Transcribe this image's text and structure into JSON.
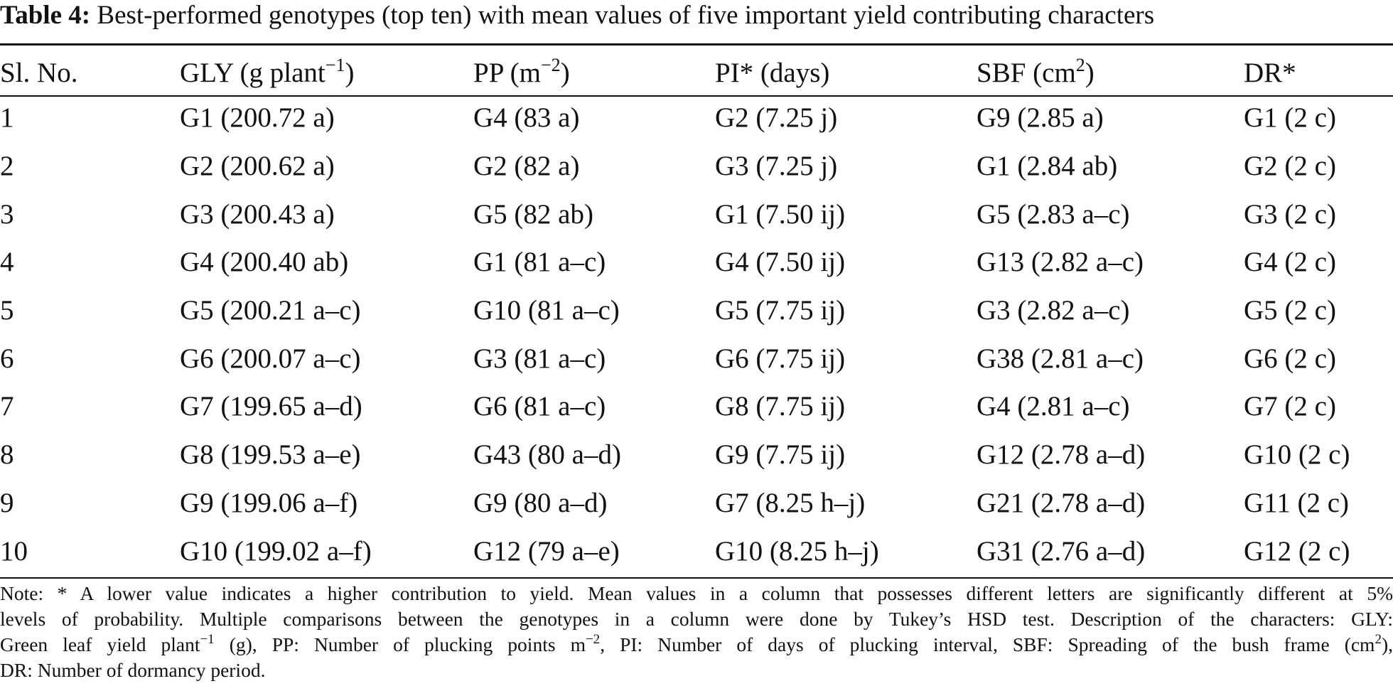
{
  "caption": {
    "label": "Table 4:",
    "text": "Best-performed genotypes (top ten) with mean values of five important yield contributing characters"
  },
  "table": {
    "headers": [
      {
        "text": "Sl. No.",
        "sup": "",
        "tail": ""
      },
      {
        "text": "GLY (g plant",
        "sup": "−1",
        "tail": ")"
      },
      {
        "text": "PP (m",
        "sup": "−2",
        "tail": ")"
      },
      {
        "text": "PI* (days)",
        "sup": "",
        "tail": ""
      },
      {
        "text": "SBF (cm",
        "sup": "2",
        "tail": ")"
      },
      {
        "text": "DR*",
        "sup": "",
        "tail": ""
      }
    ],
    "rows": [
      [
        "1",
        "G1 (200.72 a)",
        "G4 (83 a)",
        "G2 (7.25 j)",
        "G9 (2.85 a)",
        "G1 (2 c)"
      ],
      [
        "2",
        "G2 (200.62 a)",
        "G2 (82 a)",
        "G3 (7.25 j)",
        "G1 (2.84 ab)",
        "G2 (2 c)"
      ],
      [
        "3",
        "G3 (200.43 a)",
        "G5 (82 ab)",
        "G1 (7.50 ij)",
        "G5 (2.83 a–c)",
        "G3 (2 c)"
      ],
      [
        "4",
        "G4 (200.40 ab)",
        "G1 (81 a–c)",
        "G4 (7.50 ij)",
        "G13 (2.82 a–c)",
        "G4 (2 c)"
      ],
      [
        "5",
        "G5 (200.21 a–c)",
        "G10 (81 a–c)",
        "G5 (7.75 ij)",
        "G3 (2.82 a–c)",
        "G5 (2 c)"
      ],
      [
        "6",
        "G6 (200.07 a–c)",
        "G3 (81 a–c)",
        "G6 (7.75 ij)",
        "G38 (2.81 a–c)",
        "G6 (2 c)"
      ],
      [
        "7",
        "G7 (199.65 a–d)",
        "G6 (81 a–c)",
        "G8 (7.75 ij)",
        "G4 (2.81 a–c)",
        "G7 (2 c)"
      ],
      [
        "8",
        "G8 (199.53 a–e)",
        "G43 (80 a–d)",
        "G9 (7.75 ij)",
        "G12 (2.78 a–d)",
        "G10 (2 c)"
      ],
      [
        "9",
        "G9 (199.06 a–f)",
        "G9 (80 a–d)",
        "G7 (8.25 h–j)",
        "G21 (2.78 a–d)",
        "G11 (2 c)"
      ],
      [
        "10",
        "G10 (199.02 a–f)",
        "G12 (79 a–e)",
        "G10 (8.25 h–j)",
        "G31 (2.76 a–d)",
        "G12 (2 c)"
      ]
    ]
  },
  "note": {
    "line1": "Note: * A lower value indicates a higher contribution to yield. Mean values in a column that possesses different letters are significantly different at 5%",
    "line2": "levels of probability. Multiple comparisons between the genotypes in a column were done by Tukey’s HSD test. Description of the characters: GLY:",
    "line3_a": "Green leaf yield plant",
    "line3_sup1": "−1",
    "line3_b": " (g), PP: Number of plucking points m",
    "line3_sup2": "−2",
    "line3_c": ", PI: Number of days of plucking interval, SBF: Spreading of the bush frame (cm",
    "line3_sup3": "2",
    "line3_d": "),",
    "line4": "DR: Number of dormancy period."
  }
}
